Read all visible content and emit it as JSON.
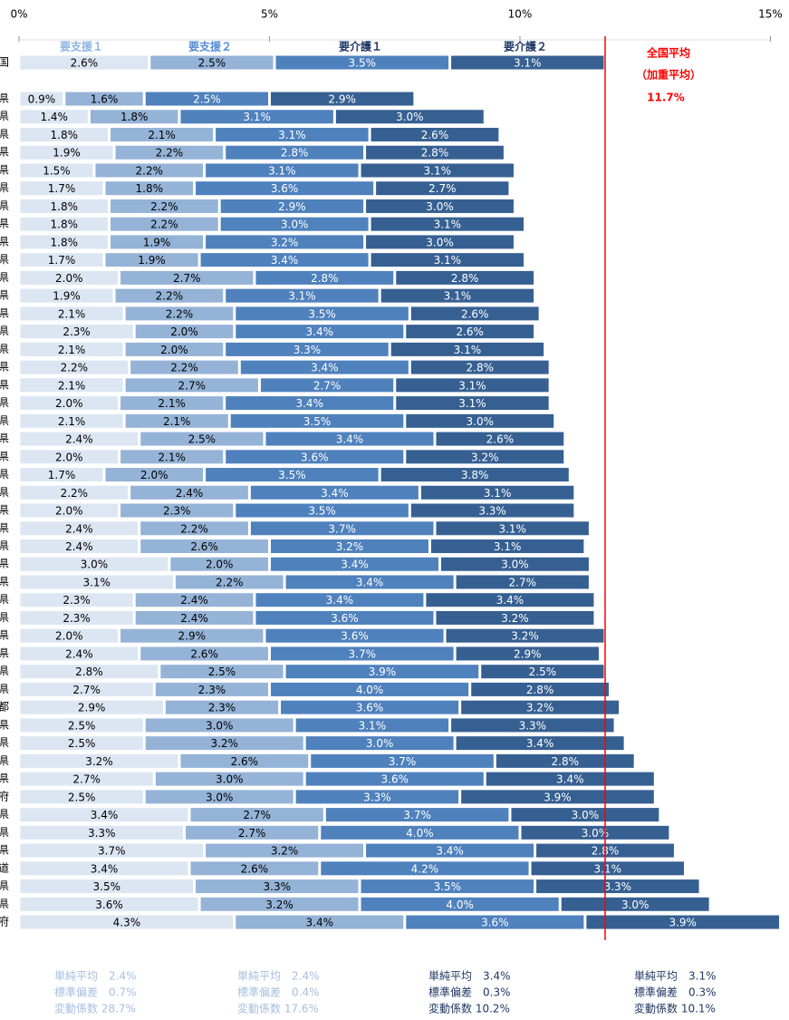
{
  "chart_data": {
    "type": "stacked_barh",
    "categories": [
      "国",
      "県",
      "県",
      "県",
      "県",
      "県",
      "県",
      "県",
      "県",
      "県",
      "県",
      "県",
      "県",
      "県",
      "県",
      "県",
      "県",
      "県",
      "県",
      "県",
      "県",
      "県",
      "県",
      "県",
      "県",
      "県",
      "県",
      "県",
      "県",
      "県",
      "県",
      "県",
      "県",
      "県",
      "県",
      "都",
      "県",
      "県",
      "県",
      "県",
      "府",
      "県",
      "県",
      "県",
      "道",
      "県",
      "県",
      "府"
    ],
    "xlim": [
      0,
      15
    ],
    "xticks": [
      {
        "value": 0,
        "label": "0%"
      },
      {
        "value": 5,
        "label": "5%"
      },
      {
        "value": 10,
        "label": "10%"
      },
      {
        "value": 15,
        "label": "15%"
      }
    ],
    "series": [
      {
        "name": "要支援１",
        "color": "#dce6f2",
        "legend_color": "#8db4e2",
        "label_color": "#000000",
        "values": [
          2.6,
          0.9,
          1.4,
          1.8,
          1.9,
          1.5,
          1.7,
          1.8,
          1.8,
          1.8,
          1.7,
          2.0,
          1.9,
          2.1,
          2.3,
          2.1,
          2.2,
          2.1,
          2.0,
          2.1,
          2.4,
          2.0,
          1.7,
          2.2,
          2.0,
          2.4,
          2.4,
          3.0,
          3.1,
          2.3,
          2.3,
          2.0,
          2.4,
          2.8,
          2.7,
          2.9,
          2.5,
          2.5,
          3.2,
          2.7,
          2.5,
          3.4,
          3.3,
          3.7,
          3.4,
          3.5,
          3.6,
          4.3
        ],
        "value_labels": [
          "2.6%",
          "0.9%",
          "1.4%",
          "1.8%",
          "1.9%",
          "1.5%",
          "1.7%",
          "1.8%",
          "1.8%",
          "1.8%",
          "1.7%",
          "2.0%",
          "1.9%",
          "2.1%",
          "2.3%",
          "2.1%",
          "2.2%",
          "2.1%",
          "2.0%",
          "2.1%",
          "2.4%",
          "2.0%",
          "1.7%",
          "2.2%",
          "2.0%",
          "2.4%",
          "2.4%",
          "3.0%",
          "3.1%",
          "2.3%",
          "2.3%",
          "2.0%",
          "2.4%",
          "2.8%",
          "2.7%",
          "2.9%",
          "2.5%",
          "2.5%",
          "3.2%",
          "2.7%",
          "2.5%",
          "3.4%",
          "3.3%",
          "3.7%",
          "3.4%",
          "3.5%",
          "3.6%",
          "4.3%"
        ],
        "stats": [
          "単純平均　2.4%",
          "標準偏差　0.7%",
          "変動係数 28.7%"
        ]
      },
      {
        "name": "要支援２",
        "color": "#95b3d7",
        "legend_color": "#558ed5",
        "label_color": "#000000",
        "values": [
          2.5,
          1.6,
          1.8,
          2.1,
          2.2,
          2.2,
          1.8,
          2.2,
          2.2,
          1.9,
          1.9,
          2.7,
          2.2,
          2.2,
          2.0,
          2.0,
          2.2,
          2.7,
          2.1,
          2.1,
          2.5,
          2.1,
          2.0,
          2.4,
          2.3,
          2.2,
          2.6,
          2.0,
          2.2,
          2.4,
          2.4,
          2.9,
          2.6,
          2.5,
          2.3,
          2.3,
          3.0,
          3.2,
          2.6,
          3.0,
          3.0,
          2.7,
          2.7,
          3.2,
          2.6,
          3.3,
          3.2,
          3.4
        ],
        "value_labels": [
          "2.5%",
          "1.6%",
          "1.8%",
          "2.1%",
          "2.2%",
          "2.2%",
          "1.8%",
          "2.2%",
          "2.2%",
          "1.9%",
          "1.9%",
          "2.7%",
          "2.2%",
          "2.2%",
          "2.0%",
          "2.0%",
          "2.2%",
          "2.7%",
          "2.1%",
          "2.1%",
          "2.5%",
          "2.1%",
          "2.0%",
          "2.4%",
          "2.3%",
          "2.2%",
          "2.6%",
          "2.0%",
          "2.2%",
          "2.4%",
          "2.4%",
          "2.9%",
          "2.6%",
          "2.5%",
          "2.3%",
          "2.3%",
          "3.0%",
          "3.2%",
          "2.6%",
          "3.0%",
          "3.0%",
          "2.7%",
          "2.7%",
          "3.2%",
          "2.6%",
          "3.3%",
          "3.2%",
          "3.4%"
        ],
        "stats": [
          "単純平均　2.4%",
          "標準偏差　0.4%",
          "変動係数 17.6%"
        ]
      },
      {
        "name": "要介護１",
        "color": "#4f81bd",
        "legend_color": "#1f3864",
        "label_color": "#ffffff",
        "values": [
          3.5,
          2.5,
          3.1,
          3.1,
          2.8,
          3.1,
          3.6,
          2.9,
          3.0,
          3.2,
          3.4,
          2.8,
          3.1,
          3.5,
          3.4,
          3.3,
          3.4,
          2.7,
          3.4,
          3.5,
          3.4,
          3.6,
          3.5,
          3.4,
          3.5,
          3.7,
          3.2,
          3.4,
          3.4,
          3.4,
          3.6,
          3.6,
          3.7,
          3.9,
          4.0,
          3.6,
          3.1,
          3.0,
          3.7,
          3.6,
          3.3,
          3.7,
          4.0,
          3.4,
          4.2,
          3.5,
          4.0,
          3.6
        ],
        "value_labels": [
          "3.5%",
          "2.5%",
          "3.1%",
          "3.1%",
          "2.8%",
          "3.1%",
          "3.6%",
          "2.9%",
          "3.0%",
          "3.2%",
          "3.4%",
          "2.8%",
          "3.1%",
          "3.5%",
          "3.4%",
          "3.3%",
          "3.4%",
          "2.7%",
          "3.4%",
          "3.5%",
          "3.4%",
          "3.6%",
          "3.5%",
          "3.4%",
          "3.5%",
          "3.7%",
          "3.2%",
          "3.4%",
          "3.4%",
          "3.4%",
          "3.6%",
          "3.6%",
          "3.7%",
          "3.9%",
          "4.0%",
          "3.6%",
          "3.1%",
          "3.0%",
          "3.7%",
          "3.6%",
          "3.3%",
          "3.7%",
          "4.0%",
          "3.4%",
          "4.2%",
          "3.5%",
          "4.0%",
          "3.6%"
        ],
        "stats": [
          "単純平均　3.4%",
          "標準偏差　0.3%",
          "変動係数 10.2%"
        ]
      },
      {
        "name": "要介護２",
        "color": "#376092",
        "legend_color": "#1f3864",
        "label_color": "#ffffff",
        "values": [
          3.1,
          2.9,
          3.0,
          2.6,
          2.8,
          3.1,
          2.7,
          3.0,
          3.1,
          3.0,
          3.1,
          2.8,
          3.1,
          2.6,
          2.6,
          3.1,
          2.8,
          3.1,
          3.1,
          3.0,
          2.6,
          3.2,
          3.8,
          3.1,
          3.3,
          3.1,
          3.1,
          3.0,
          2.7,
          3.4,
          3.2,
          3.2,
          2.9,
          2.5,
          2.8,
          3.2,
          3.3,
          3.4,
          2.8,
          3.4,
          3.9,
          3.0,
          3.0,
          2.8,
          3.1,
          3.3,
          3.0,
          3.9
        ],
        "value_labels": [
          "3.1%",
          "2.9%",
          "3.0%",
          "2.6%",
          "2.8%",
          "3.1%",
          "2.7%",
          "3.0%",
          "3.1%",
          "3.0%",
          "3.1%",
          "2.8%",
          "3.1%",
          "2.6%",
          "2.6%",
          "3.1%",
          "2.8%",
          "3.1%",
          "3.1%",
          "3.0%",
          "2.6%",
          "3.2%",
          "3.8%",
          "3.1%",
          "3.3%",
          "3.1%",
          "3.1%",
          "3.0%",
          "2.7%",
          "3.4%",
          "3.2%",
          "3.2%",
          "2.9%",
          "2.5%",
          "2.8%",
          "3.2%",
          "3.3%",
          "3.4%",
          "2.8%",
          "3.4%",
          "3.9%",
          "3.0%",
          "3.0%",
          "2.8%",
          "3.1%",
          "3.3%",
          "3.0%",
          "3.9%"
        ],
        "stats": [
          "単純平均　3.1%",
          "標準偏差　0.3%",
          "変動係数 10.1%"
        ]
      }
    ],
    "annotation": {
      "lines": [
        "全国平均",
        "（加重平均）"
      ],
      "value": 11.7,
      "label": "11.7%",
      "color": "#ff0000"
    }
  }
}
